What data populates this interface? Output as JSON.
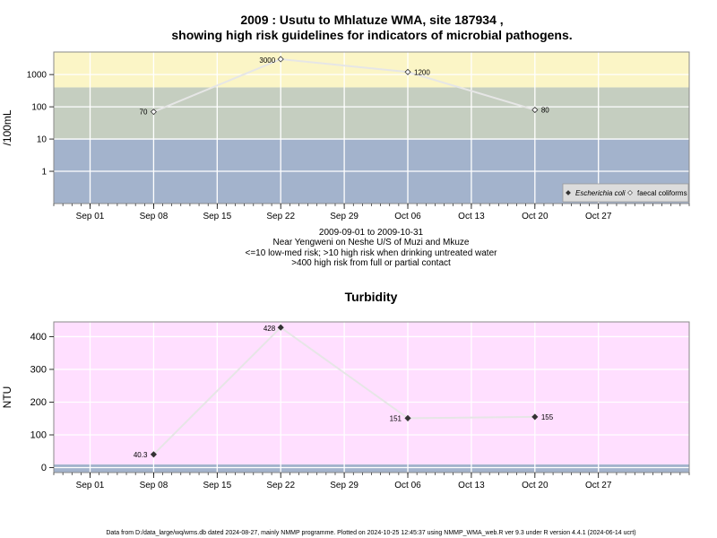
{
  "chart_data": [
    {
      "type": "line",
      "title_line1": "2009 : Usutu to Mhlatuze WMA, site 187934 ,",
      "title_line2": "showing high risk guidelines for indicators of microbial pathogens.",
      "ylabel": "/100mL",
      "y_scale": "log",
      "yticks": [
        "1",
        "10",
        "100",
        "1000"
      ],
      "xticks": [
        "Sep 01",
        "Sep 08",
        "Sep 15",
        "Sep 22",
        "Sep 29",
        "Oct 06",
        "Oct 13",
        "Oct 20",
        "Oct 27"
      ],
      "xtick_dates": [
        "2009-09-01",
        "2009-09-08",
        "2009-09-15",
        "2009-09-22",
        "2009-09-29",
        "2009-10-06",
        "2009-10-13",
        "2009-10-20",
        "2009-10-27"
      ],
      "xlim": [
        "2009-08-28",
        "2009-11-06"
      ],
      "ylim": [
        0.1,
        5000
      ],
      "bands": [
        {
          "from": 0.1,
          "to": 10,
          "color": "#a3b3cc"
        },
        {
          "from": 10,
          "to": 400,
          "color": "#c5cec0"
        },
        {
          "from": 400,
          "to": 5000,
          "color": "#fbf5c6"
        }
      ],
      "series": [
        {
          "name": "faecal coliforms",
          "marker": "open-diamond",
          "points": [
            {
              "x": "2009-09-08",
              "y": 70,
              "label": "70"
            },
            {
              "x": "2009-09-22",
              "y": 3000,
              "label": "3000"
            },
            {
              "x": "2009-10-06",
              "y": 1200,
              "label": "1200"
            },
            {
              "x": "2009-10-20",
              "y": 80,
              "label": "80"
            }
          ]
        }
      ],
      "legend": {
        "position": "bottom-right",
        "entries": [
          {
            "label": "Escherichia coli",
            "marker": "filled-diamond",
            "italic": true
          },
          {
            "label": "faecal coliforms",
            "marker": "open-diamond",
            "italic": false
          }
        ]
      },
      "annotations": [
        "2009-09-01 to 2009-10-31",
        "Near Yengweni on Neshe U/S of Muzi and Mkuze",
        "<=10 low-med risk; >10 high risk when drinking untreated water",
        ">400 high risk from full or partial contact"
      ]
    },
    {
      "type": "line",
      "title": "Turbidity",
      "ylabel": "NTU",
      "yticks": [
        0,
        100,
        200,
        300,
        400
      ],
      "xticks": [
        "Sep 01",
        "Sep 08",
        "Sep 15",
        "Sep 22",
        "Sep 29",
        "Oct 06",
        "Oct 13",
        "Oct 20",
        "Oct 27"
      ],
      "xtick_dates": [
        "2009-09-01",
        "2009-09-08",
        "2009-09-15",
        "2009-09-22",
        "2009-09-29",
        "2009-10-06",
        "2009-10-13",
        "2009-10-20",
        "2009-10-27"
      ],
      "xlim": [
        "2009-08-28",
        "2009-11-06"
      ],
      "ylim": [
        -15,
        445
      ],
      "bands": [
        {
          "from": -15,
          "to": 10,
          "color": "#a3b3cc"
        },
        {
          "from": 10,
          "to": 445,
          "color": "#ffdfff"
        }
      ],
      "series": [
        {
          "name": "",
          "marker": "filled-diamond",
          "points": [
            {
              "x": "2009-09-08",
              "y": 40.3,
              "label": "40.3"
            },
            {
              "x": "2009-09-22",
              "y": 428,
              "label": "428"
            },
            {
              "x": "2009-10-06",
              "y": 151,
              "label": "151"
            },
            {
              "x": "2009-10-20",
              "y": 155,
              "label": "155"
            }
          ]
        }
      ]
    }
  ],
  "footer": "Data from D:/data_large/wq/wms.db dated 2024-08-27, mainly NMMP programme. Plotted on 2024-10-25 12:45:37 using NMMP_WMA_web.R ver 9.3 under R version 4.4.1 (2024-06-14 ucrt)"
}
